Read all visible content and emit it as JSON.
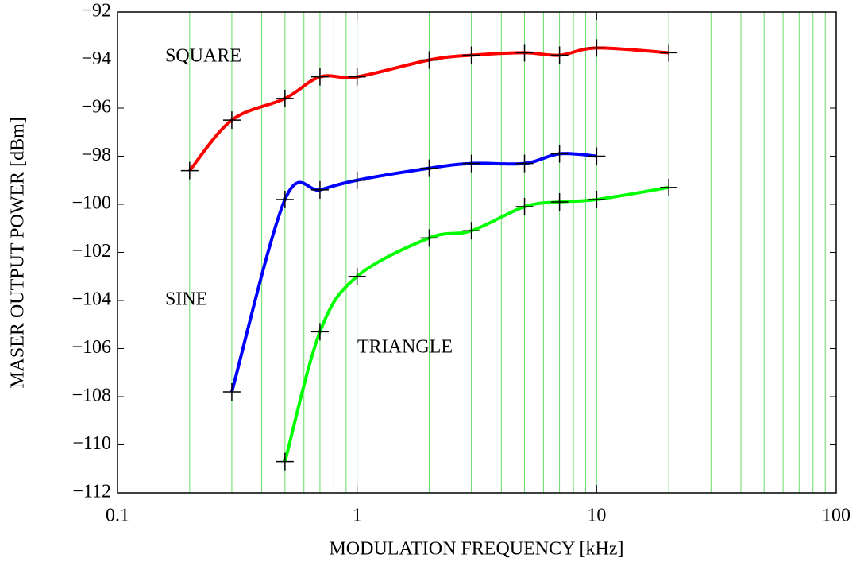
{
  "chart_data": {
    "type": "line",
    "xlabel": "MODULATION FREQUENCY [kHz]",
    "ylabel": "MASER OUTPUT POWER [dBm]",
    "xscale": "log",
    "xlim": [
      0.1,
      100
    ],
    "ylim": [
      -112,
      -92
    ],
    "xticks": [
      0.1,
      1,
      10,
      100
    ],
    "yticks": [
      {
        "value": -112,
        "label": "−112"
      },
      {
        "value": -110,
        "label": "−110"
      },
      {
        "value": -108,
        "label": "−108"
      },
      {
        "value": -106,
        "label": "−106"
      },
      {
        "value": -104,
        "label": "−104"
      },
      {
        "value": -102,
        "label": "−102"
      },
      {
        "value": -100,
        "label": "−100"
      },
      {
        "value": -98,
        "label": "−98"
      },
      {
        "value": -96,
        "label": "−96"
      },
      {
        "value": -94,
        "label": "−94"
      },
      {
        "value": -92,
        "label": "−92"
      }
    ],
    "xgrid": [
      0.2,
      0.3,
      0.4,
      0.5,
      0.6,
      0.7,
      0.8,
      0.9,
      1,
      2,
      3,
      4,
      5,
      6,
      7,
      8,
      9,
      10,
      20,
      30,
      40,
      50,
      60,
      70,
      80,
      90
    ],
    "grid_color": "#66dd66",
    "series": [
      {
        "name": "SQUARE",
        "color": "#ff0000",
        "x": [
          0.2,
          0.3,
          0.5,
          0.7,
          1,
          2,
          3,
          5,
          7,
          10,
          20
        ],
        "values": [
          -98.6,
          -96.5,
          -95.6,
          -94.7,
          -94.7,
          -94.0,
          -93.8,
          -93.7,
          -93.8,
          -93.5,
          -93.7
        ]
      },
      {
        "name": "SINE",
        "color": "#0000ff",
        "x": [
          0.3,
          0.5,
          0.7,
          1,
          2,
          3,
          5,
          7,
          10
        ],
        "values": [
          -107.8,
          -99.8,
          -99.4,
          -99.0,
          -98.5,
          -98.3,
          -98.3,
          -97.9,
          -98.0
        ]
      },
      {
        "name": "TRIANGLE",
        "color": "#00ff00",
        "x": [
          0.5,
          0.7,
          1,
          2,
          3,
          5,
          7,
          10,
          20
        ],
        "values": [
          -110.7,
          -105.3,
          -103.0,
          -101.4,
          -101.1,
          -100.1,
          -99.9,
          -99.8,
          -99.3
        ]
      }
    ]
  }
}
